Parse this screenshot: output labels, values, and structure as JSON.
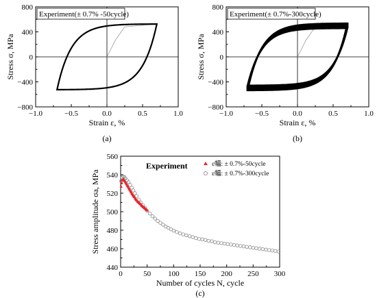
{
  "figures": [
    {
      "panel_label": "(a)",
      "legend_text": "Experiment(± 0.7% -50cycle)",
      "ylabel": "Stress  σ, MPa",
      "xlabel": "Strain ε, %",
      "xticks": [
        "−1.0",
        "−0.5",
        "0.0",
        "0.5",
        "1.0"
      ],
      "yticks": [
        "−800",
        "−400",
        "0",
        "400",
        "800"
      ]
    },
    {
      "panel_label": "(b)",
      "legend_text": "Experiment(± 0.7%-300cycle)",
      "ylabel": "Stress  σ, MPa",
      "xlabel": "Strain ε, %",
      "xticks": [
        "−1.0",
        "−0.5",
        "0.0",
        "0.5",
        "1.0"
      ],
      "yticks": [
        "−800",
        "−400",
        "0",
        "400",
        "800"
      ]
    },
    {
      "panel_label": "(c)",
      "title": "Experiment",
      "ylabel": "Stress amplitude σa, MPa",
      "xlabel": "Number of cycles N, cycle",
      "xticks": [
        "0",
        "50",
        "100",
        "150",
        "200",
        "250",
        "300"
      ],
      "yticks": [
        "440",
        "460",
        "480",
        "500",
        "520",
        "540",
        "560"
      ],
      "legend": [
        "ε幅: ± 0.7%-50cycle",
        "ε幅: ± 0.7%-300cycle"
      ]
    }
  ],
  "chart_data": [
    {
      "type": "line",
      "title": "Experiment(± 0.7% -50cycle)",
      "xlabel": "Strain ε, %",
      "ylabel": "Stress σ, MPa",
      "xlim": [
        -1.0,
        1.0
      ],
      "ylim": [
        -800,
        800
      ],
      "series": [
        {
          "name": "Experiment(± 0.7% -50cycle)",
          "kind": "hysteresis",
          "strain_amplitude": 0.7,
          "peak_stress": 525,
          "cycles": 50,
          "initial_loading": [
            [
              0.0,
              0
            ],
            [
              0.12,
              270
            ],
            [
              0.25,
              480
            ],
            [
              0.7,
              525
            ]
          ]
        }
      ]
    },
    {
      "type": "line",
      "title": "Experiment(± 0.7%-300cycle)",
      "xlabel": "Strain ε, %",
      "ylabel": "Stress σ, MPa",
      "xlim": [
        -1.0,
        1.0
      ],
      "ylim": [
        -800,
        800
      ],
      "series": [
        {
          "name": "Experiment(± 0.7%-300cycle)",
          "kind": "hysteresis",
          "strain_amplitude": 0.7,
          "peak_stress_start": 535,
          "peak_stress_end": 458,
          "cycles": 300,
          "initial_loading": [
            [
              0.0,
              0
            ],
            [
              0.12,
              270
            ],
            [
              0.25,
              480
            ],
            [
              0.7,
              535
            ]
          ]
        }
      ]
    },
    {
      "type": "scatter",
      "title": "Experiment",
      "xlabel": "Number of cycles N, cycle",
      "ylabel": "Stress amplitude σa, MPa",
      "xlim": [
        0,
        300
      ],
      "ylim": [
        440,
        560
      ],
      "series": [
        {
          "name": "ε幅: ± 0.7%-50cycle",
          "marker": "filled-triangle",
          "color": "#e8252a",
          "x": [
            1,
            2,
            3,
            4,
            5,
            6,
            7,
            8,
            9,
            10,
            11,
            12,
            13,
            14,
            15,
            16,
            17,
            18,
            19,
            20,
            21,
            22,
            23,
            24,
            25,
            26,
            27,
            28,
            29,
            30,
            31,
            32,
            33,
            34,
            35,
            36,
            37,
            38,
            39,
            40,
            41,
            42,
            43,
            44,
            45,
            46,
            47,
            48,
            49,
            50
          ],
          "y": [
            527,
            531,
            534,
            535,
            535,
            534.5,
            534,
            533,
            532,
            531,
            530,
            529,
            528,
            527,
            526,
            525,
            524,
            523,
            522,
            521,
            520,
            519,
            518,
            517,
            516.5,
            516,
            515,
            514,
            513,
            512.5,
            512,
            511,
            510.5,
            510,
            509.5,
            509,
            508.5,
            508,
            507,
            506.5,
            506,
            505.5,
            505,
            504.5,
            504,
            503.5,
            503,
            502.5,
            502,
            501.5
          ]
        },
        {
          "name": "ε幅: ± 0.7%-300cycle",
          "marker": "open-circle",
          "color": "#888888",
          "x": [
            1,
            3,
            5,
            7,
            9,
            12,
            15,
            18,
            21,
            24,
            27,
            30,
            34,
            38,
            42,
            46,
            50,
            55,
            60,
            65,
            70,
            75,
            80,
            85,
            90,
            95,
            100,
            106,
            112,
            118,
            124,
            130,
            136,
            142,
            148,
            154,
            160,
            166,
            172,
            178,
            184,
            190,
            196,
            202,
            208,
            214,
            220,
            226,
            232,
            238,
            244,
            250,
            256,
            262,
            268,
            274,
            280,
            286,
            292,
            298
          ],
          "y": [
            533,
            537,
            538,
            537.5,
            536,
            534,
            532,
            529,
            526,
            523,
            520,
            517,
            513,
            510,
            507,
            504,
            501,
            498,
            495,
            492.5,
            490,
            488,
            486,
            484,
            482.5,
            481,
            479.5,
            478,
            476.5,
            475.5,
            474.5,
            473.5,
            472.5,
            471.5,
            470.5,
            470,
            469.5,
            468.5,
            468,
            467,
            466.5,
            466,
            465.5,
            465,
            464.5,
            464,
            463.5,
            463,
            462.5,
            462,
            461.5,
            461,
            460.5,
            460,
            459.5,
            459,
            458.5,
            458,
            457.5,
            457
          ]
        }
      ]
    }
  ]
}
